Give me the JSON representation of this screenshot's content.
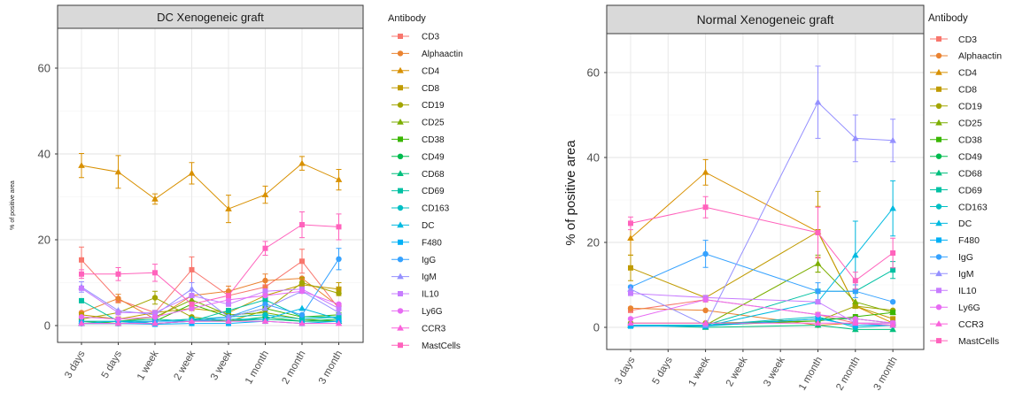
{
  "chart_data": [
    {
      "type": "line",
      "title": "DC Xenogeneic graft",
      "ylabel": "% of positive area",
      "categories": [
        "3 days",
        "5 days",
        "1 week",
        "2 week",
        "3 week",
        "1 month",
        "2 month",
        "3 month"
      ],
      "yticks": [
        0,
        20,
        40,
        60
      ],
      "ylim": [
        -4,
        69
      ],
      "grid": true,
      "legend": {
        "title": "Antibody",
        "position": "right"
      },
      "series": [
        {
          "name": "CD3",
          "color": "#F8766D",
          "shape": "square",
          "values": [
            15.3,
            6,
            3,
            13,
            7,
            9,
            15,
            4
          ],
          "errors": [
            3,
            0,
            0,
            3,
            0,
            0,
            2.8,
            0
          ]
        },
        {
          "name": "Alphaactin",
          "color": "#EA8331",
          "shape": "circle",
          "values": [
            3,
            6.3,
            1.5,
            7,
            8,
            10.5,
            11,
            4.5
          ],
          "errors": [
            0,
            1,
            0,
            0,
            1.2,
            1.5,
            0,
            0
          ]
        },
        {
          "name": "CD4",
          "color": "#D89000",
          "shape": "triangle",
          "values": [
            37.3,
            35.8,
            29.5,
            35.5,
            27.2,
            30.5,
            37.8,
            34
          ],
          "errors": [
            2.8,
            3.8,
            1.2,
            2.5,
            3.2,
            2,
            1.6,
            2.4
          ]
        },
        {
          "name": "CD8",
          "color": "#C09B00",
          "shape": "square",
          "values": [
            2.5,
            1.5,
            3,
            4,
            3,
            7,
            9.5,
            8.5
          ],
          "errors": [
            0,
            0,
            0,
            0,
            0,
            0,
            0,
            1.5
          ]
        },
        {
          "name": "CD19",
          "color": "#A3A500",
          "shape": "circle",
          "values": [
            1.5,
            3,
            6.5,
            2,
            1,
            3.5,
            10,
            7.5
          ],
          "errors": [
            0,
            0,
            1.5,
            0,
            0,
            0,
            1.2,
            0
          ]
        },
        {
          "name": "CD25",
          "color": "#7CAE00",
          "shape": "triangle",
          "values": [
            0.5,
            1,
            2,
            6,
            2.5,
            3,
            1.5,
            1
          ]
        },
        {
          "name": "CD38",
          "color": "#39B600",
          "shape": "square",
          "values": [
            1,
            0.5,
            1,
            5,
            2,
            4,
            2,
            2.5
          ]
        },
        {
          "name": "CD49",
          "color": "#00BB4E",
          "shape": "circle",
          "values": [
            0.5,
            0.5,
            1,
            1.5,
            1,
            2,
            1,
            1.5
          ]
        },
        {
          "name": "CD68",
          "color": "#00BF7D",
          "shape": "triangle",
          "values": [
            0.5,
            0.5,
            0.5,
            1,
            1,
            1.5,
            1,
            1
          ]
        },
        {
          "name": "CD69",
          "color": "#00C1A3",
          "shape": "square",
          "values": [
            5.8,
            1,
            1.5,
            1,
            3.5,
            6,
            2,
            2
          ]
        },
        {
          "name": "CD163",
          "color": "#00BFC4",
          "shape": "circle",
          "values": [
            1,
            1,
            1,
            1.5,
            2,
            2.5,
            1.5,
            2
          ]
        },
        {
          "name": "DC",
          "color": "#00BAE0",
          "shape": "triangle",
          "values": [
            0.5,
            1,
            0.5,
            1,
            1.5,
            1.5,
            4,
            1.5
          ]
        },
        {
          "name": "F480",
          "color": "#00B0F6",
          "shape": "square",
          "values": [
            0.5,
            0.5,
            0.3,
            0.5,
            0.5,
            1,
            0.5,
            1
          ]
        },
        {
          "name": "IgG",
          "color": "#35A2FF",
          "shape": "circle",
          "values": [
            0.5,
            0.5,
            1,
            1,
            2,
            5,
            2.5,
            15.5
          ],
          "errors": [
            0,
            0,
            0,
            0,
            0,
            0,
            0,
            2.5
          ]
        },
        {
          "name": "IgM",
          "color": "#9590FF",
          "shape": "triangle",
          "values": [
            9,
            3.5,
            2.5,
            8.5,
            2,
            4,
            8,
            3
          ],
          "errors": [
            1.2,
            0,
            0,
            1.5,
            0,
            0,
            0,
            0
          ]
        },
        {
          "name": "IL10",
          "color": "#C77CFF",
          "shape": "square",
          "values": [
            8.7,
            3,
            3,
            7,
            5,
            8,
            8.5,
            4
          ]
        },
        {
          "name": "Ly6G",
          "color": "#E76BF3",
          "shape": "circle",
          "values": [
            2,
            1.5,
            2,
            4,
            6,
            7,
            8,
            5
          ]
        },
        {
          "name": "CCR3",
          "color": "#FA62DB",
          "shape": "triangle",
          "values": [
            0.5,
            0.5,
            0.5,
            1,
            1,
            1,
            0.5,
            0.5
          ]
        },
        {
          "name": "MastCells",
          "color": "#FF62BC",
          "shape": "square",
          "values": [
            12,
            12,
            12.3,
            5,
            7,
            18,
            23.5,
            23
          ],
          "errors": [
            1,
            1.5,
            2,
            0,
            0,
            1.6,
            3,
            3
          ]
        }
      ]
    },
    {
      "type": "line",
      "title": "Normal Xenogeneic graft",
      "ylabel": "% of positive area",
      "categories": [
        "3 days",
        "5 days",
        "1 week",
        "2 week",
        "3 week",
        "1 month",
        "2 month",
        "3 month"
      ],
      "yticks": [
        0,
        20,
        40,
        60
      ],
      "ylim": [
        -5,
        69
      ],
      "grid": true,
      "legend": {
        "title": "Antibody",
        "position": "right"
      },
      "series": [
        {
          "name": "CD3",
          "color": "#F8766D",
          "shape": "square",
          "values": [
            4,
            null,
            6.5,
            null,
            null,
            3,
            1,
            1
          ]
        },
        {
          "name": "Alphaactin",
          "color": "#EA8331",
          "shape": "circle",
          "values": [
            4.5,
            null,
            4,
            null,
            null,
            0.5,
            1,
            0.5
          ]
        },
        {
          "name": "CD4",
          "color": "#D89000",
          "shape": "triangle",
          "values": [
            21,
            null,
            36.5,
            null,
            null,
            22.5,
            5,
            1
          ],
          "errors": [
            4,
            0,
            3,
            0,
            0,
            6,
            0,
            0
          ]
        },
        {
          "name": "CD8",
          "color": "#C09B00",
          "shape": "square",
          "values": [
            14,
            null,
            7,
            null,
            null,
            22.5,
            5,
            2
          ],
          "errors": [
            3,
            0,
            0,
            0,
            0,
            9.5,
            0,
            0
          ]
        },
        {
          "name": "CD19",
          "color": "#A3A500",
          "shape": "circle",
          "values": [
            1,
            null,
            1,
            null,
            null,
            1.5,
            5,
            4
          ]
        },
        {
          "name": "CD25",
          "color": "#7CAE00",
          "shape": "triangle",
          "values": [
            0.5,
            null,
            0.5,
            null,
            null,
            15,
            6,
            3.5
          ],
          "errors": [
            0,
            0,
            0,
            0,
            0,
            2,
            0,
            0
          ]
        },
        {
          "name": "CD38",
          "color": "#39B600",
          "shape": "square",
          "values": [
            0.5,
            null,
            0.5,
            null,
            null,
            1.5,
            2.5,
            3.5
          ]
        },
        {
          "name": "CD49",
          "color": "#00BB4E",
          "shape": "circle",
          "values": [
            0.5,
            null,
            0.5,
            null,
            null,
            2,
            2,
            1
          ]
        },
        {
          "name": "CD68",
          "color": "#00BF7D",
          "shape": "triangle",
          "values": [
            0.5,
            null,
            0,
            null,
            null,
            0.5,
            -0.5,
            -0.5
          ]
        },
        {
          "name": "CD69",
          "color": "#00C1A3",
          "shape": "square",
          "values": [
            0.5,
            null,
            0.5,
            null,
            null,
            8.5,
            8.5,
            13.5
          ],
          "errors": [
            0,
            0,
            0,
            0,
            0,
            0,
            0,
            2
          ]
        },
        {
          "name": "CD163",
          "color": "#00BFC4",
          "shape": "circle",
          "values": [
            0.5,
            null,
            0.5,
            null,
            null,
            2.5,
            0,
            0.5
          ]
        },
        {
          "name": "DC",
          "color": "#00BAE0",
          "shape": "triangle",
          "values": [
            0.5,
            null,
            0.3,
            null,
            null,
            6,
            17,
            28
          ],
          "errors": [
            0,
            0,
            0,
            0,
            0,
            0,
            8,
            6.5
          ]
        },
        {
          "name": "F480",
          "color": "#00B0F6",
          "shape": "square",
          "values": [
            0.3,
            null,
            0.3,
            null,
            null,
            2,
            0.5,
            0.5
          ]
        },
        {
          "name": "IgG",
          "color": "#35A2FF",
          "shape": "circle",
          "values": [
            9.5,
            null,
            17.3,
            null,
            null,
            8.5,
            8.5,
            6
          ],
          "errors": [
            0,
            0,
            3.2,
            0,
            0,
            2,
            1.5,
            0
          ]
        },
        {
          "name": "IgM",
          "color": "#9590FF",
          "shape": "triangle",
          "values": [
            9,
            null,
            0.5,
            null,
            null,
            53,
            44.5,
            44
          ],
          "errors": [
            0,
            0,
            0,
            0,
            0,
            8.5,
            5.5,
            5
          ]
        },
        {
          "name": "IL10",
          "color": "#C77CFF",
          "shape": "square",
          "values": [
            8,
            null,
            7,
            null,
            null,
            6,
            1,
            1
          ]
        },
        {
          "name": "Ly6G",
          "color": "#E76BF3",
          "shape": "circle",
          "values": [
            2,
            null,
            6.5,
            null,
            null,
            3,
            2,
            1
          ]
        },
        {
          "name": "CCR3",
          "color": "#FA62DB",
          "shape": "triangle",
          "values": [
            1,
            null,
            1,
            null,
            null,
            1,
            1,
            0.5
          ]
        },
        {
          "name": "MastCells",
          "color": "#FF62BC",
          "shape": "square",
          "values": [
            24.5,
            null,
            28.3,
            null,
            null,
            22.3,
            11,
            17.5
          ],
          "errors": [
            1.5,
            0,
            2.5,
            0,
            0,
            6,
            2,
            3.5
          ]
        }
      ]
    }
  ]
}
